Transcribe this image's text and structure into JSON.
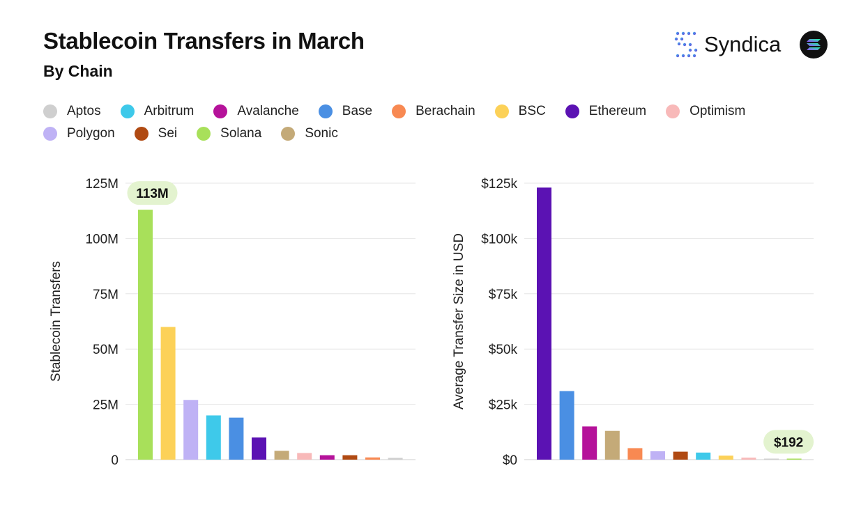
{
  "header": {
    "title": "Stablecoin Transfers in March",
    "subtitle": "By Chain"
  },
  "brand": {
    "name": "Syndica",
    "logo_icon": "syndica-logo-icon",
    "badge_icon": "solana-badge-icon"
  },
  "legend": [
    {
      "label": "Aptos",
      "color": "#cfcfcf"
    },
    {
      "label": "Arbitrum",
      "color": "#3ec9ea"
    },
    {
      "label": "Avalanche",
      "color": "#b5129a"
    },
    {
      "label": "Base",
      "color": "#4a8fe3"
    },
    {
      "label": "Berachain",
      "color": "#f88952"
    },
    {
      "label": "BSC",
      "color": "#fcd158"
    },
    {
      "label": "Ethereum",
      "color": "#5b12b3"
    },
    {
      "label": "Optimism",
      "color": "#f8b9b9"
    },
    {
      "label": "Polygon",
      "color": "#bfb2f5"
    },
    {
      "label": "Sei",
      "color": "#b04a12"
    },
    {
      "label": "Solana",
      "color": "#a8e05a"
    },
    {
      "label": "Sonic",
      "color": "#c4aa78"
    }
  ],
  "chart_data": [
    {
      "type": "bar",
      "ylabel": "Stablecoin Transfers",
      "ylim": [
        0,
        125000000
      ],
      "yticks": [
        {
          "value": 0,
          "label": "0"
        },
        {
          "value": 25000000,
          "label": "25M"
        },
        {
          "value": 50000000,
          "label": "50M"
        },
        {
          "value": 75000000,
          "label": "75M"
        },
        {
          "value": 100000000,
          "label": "100M"
        },
        {
          "value": 125000000,
          "label": "125M"
        }
      ],
      "categories": [
        "Solana",
        "BSC",
        "Polygon",
        "Arbitrum",
        "Base",
        "Ethereum",
        "Sonic",
        "Optimism",
        "Avalanche",
        "Sei",
        "Berachain",
        "Aptos"
      ],
      "values": [
        113000000,
        60000000,
        27000000,
        20000000,
        19000000,
        10000000,
        4000000,
        3000000,
        2000000,
        2000000,
        1000000,
        800000
      ],
      "callout": {
        "category": "Solana",
        "label": "113M"
      }
    },
    {
      "type": "bar",
      "ylabel": "Average Transfer Size in USD",
      "ylim": [
        0,
        125000
      ],
      "yticks": [
        {
          "value": 0,
          "label": "$0"
        },
        {
          "value": 25000,
          "label": "$25k"
        },
        {
          "value": 50000,
          "label": "$50k"
        },
        {
          "value": 75000,
          "label": "$75k"
        },
        {
          "value": 100000,
          "label": "$100k"
        },
        {
          "value": 125000,
          "label": "$125k"
        }
      ],
      "categories": [
        "Ethereum",
        "Base",
        "Avalanche",
        "Sonic",
        "Berachain",
        "Polygon",
        "Sei",
        "Arbitrum",
        "BSC",
        "Optimism",
        "Aptos",
        "Solana"
      ],
      "values": [
        123000,
        31000,
        15000,
        13000,
        5200,
        3800,
        3600,
        3200,
        1800,
        900,
        400,
        192
      ],
      "callout": {
        "category": "Solana",
        "label": "$192"
      }
    }
  ]
}
